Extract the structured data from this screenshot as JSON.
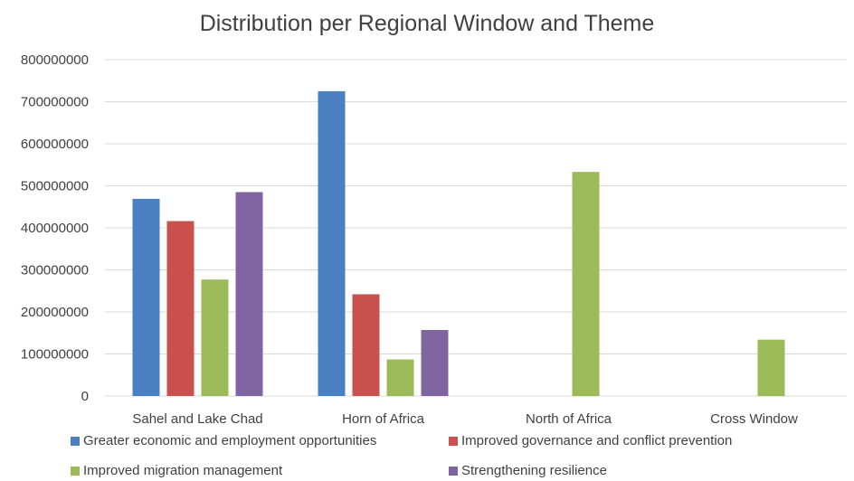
{
  "chart_data": {
    "type": "bar",
    "title": "Distribution per Regional Window and Theme",
    "categories": [
      "Sahel and Lake Chad",
      "Horn of Africa",
      "North of Africa",
      "Cross Window"
    ],
    "series": [
      {
        "name": "Greater economic and employment opportunities",
        "color": "#4a7fc1",
        "values": [
          469000000,
          725000000,
          0,
          0
        ]
      },
      {
        "name": "Improved governance and conflict prevention",
        "color": "#c9504d",
        "values": [
          416000000,
          242000000,
          0,
          0
        ]
      },
      {
        "name": "Improved migration management",
        "color": "#9bbb59",
        "values": [
          277000000,
          87000000,
          533000000,
          134000000
        ]
      },
      {
        "name": "Strengthening resilience",
        "color": "#8064a2",
        "values": [
          485000000,
          157000000,
          0,
          0
        ]
      }
    ],
    "y_ticks": [
      "0",
      "100000000",
      "200000000",
      "300000000",
      "400000000",
      "500000000",
      "600000000",
      "700000000",
      "800000000"
    ],
    "ylim": [
      0,
      800000000
    ],
    "grid": true,
    "legend_position": "bottom"
  }
}
